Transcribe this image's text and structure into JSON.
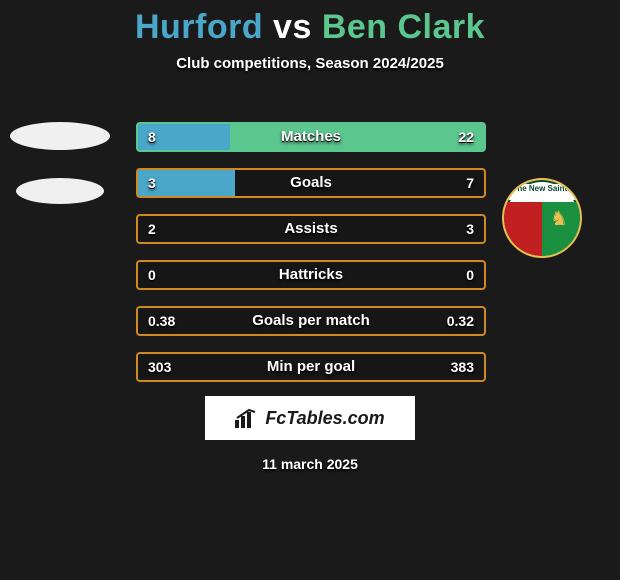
{
  "title": {
    "player1": "Hurford",
    "vs": "vs",
    "player2": "Ben Clark",
    "color1": "#4aa7c9",
    "color_vs": "#ffffff",
    "color2": "#5cc68f"
  },
  "subtitle": "Club competitions, Season 2024/2025",
  "date": "11 march 2025",
  "fctables_label": "FcTables.com",
  "colors": {
    "left": "#4aa7c9",
    "right": "#5cc68f",
    "border_default": "#d08820",
    "background": "#1a1a1a",
    "text": "#ffffff"
  },
  "club_badge_right": {
    "name": "The New Saints",
    "top_text": "The New Saints"
  },
  "bars": [
    {
      "label": "Matches",
      "left_value": "8",
      "right_value": "22",
      "left_pct": 26.7,
      "right_pct": 73.3,
      "border_color": "#5cc68f"
    },
    {
      "label": "Goals",
      "left_value": "3",
      "right_value": "7",
      "left_pct": 28.0,
      "right_pct": 0,
      "border_color": "#d08820"
    },
    {
      "label": "Assists",
      "left_value": "2",
      "right_value": "3",
      "left_pct": 0,
      "right_pct": 0,
      "border_color": "#d08820"
    },
    {
      "label": "Hattricks",
      "left_value": "0",
      "right_value": "0",
      "left_pct": 0,
      "right_pct": 0,
      "border_color": "#d08820"
    },
    {
      "label": "Goals per match",
      "left_value": "0.38",
      "right_value": "0.32",
      "left_pct": 0,
      "right_pct": 0,
      "border_color": "#d08820"
    },
    {
      "label": "Min per goal",
      "left_value": "303",
      "right_value": "383",
      "left_pct": 0,
      "right_pct": 0,
      "border_color": "#d08820"
    }
  ]
}
